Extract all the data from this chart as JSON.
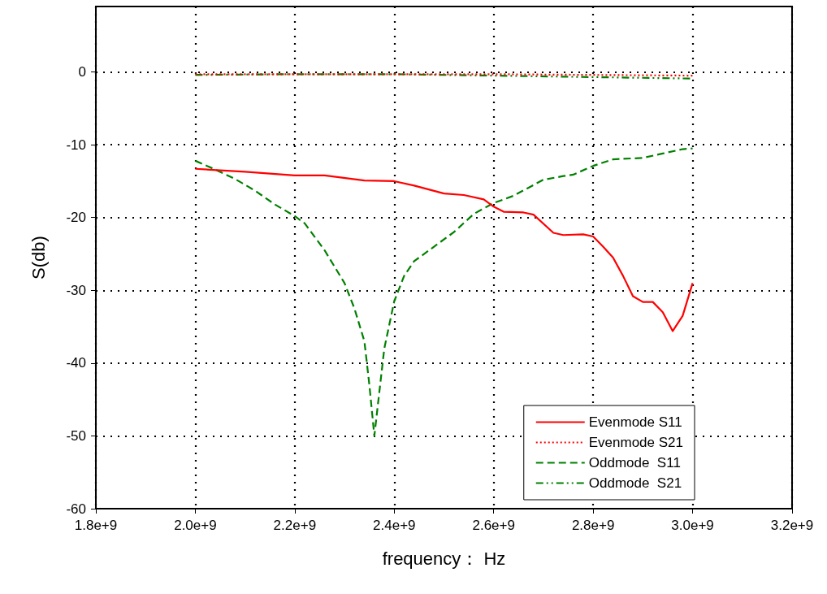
{
  "chart_data": {
    "type": "line",
    "xlabel": "frequency： Hz",
    "ylabel": "S(db)",
    "xlim": [
      1800000000,
      3200000000
    ],
    "xticks": [
      {
        "value": 1800000000,
        "label": "1.8e+9"
      },
      {
        "value": 2000000000,
        "label": "2.0e+9"
      },
      {
        "value": 2200000000,
        "label": "2.2e+9"
      },
      {
        "value": 2400000000,
        "label": "2.4e+9"
      },
      {
        "value": 2600000000,
        "label": "2.6e+9"
      },
      {
        "value": 2800000000,
        "label": "2.8e+9"
      },
      {
        "value": 3000000000,
        "label": "3.0e+9"
      },
      {
        "value": 3200000000,
        "label": "3.2e+9"
      }
    ],
    "ylim": [
      -60,
      9
    ],
    "yticks": [
      -60,
      -50,
      -40,
      -30,
      -20,
      -10,
      0
    ],
    "grid": true,
    "legend": "bottom right",
    "marker": "none",
    "series": [
      {
        "name": "Evenmode S11",
        "color": "#ff0000",
        "line_style": "solid",
        "x": [
          2000000000,
          2100000000,
          2200000000,
          2260000000,
          2340000000,
          2400000000,
          2440000000,
          2500000000,
          2540000000,
          2580000000,
          2600000000,
          2620000000,
          2660000000,
          2680000000,
          2720000000,
          2740000000,
          2780000000,
          2800000000,
          2820000000,
          2840000000,
          2860000000,
          2880000000,
          2900000000,
          2920000000,
          2940000000,
          2960000000,
          2980000000,
          3000000000
        ],
        "values": [
          -13.3,
          -13.7,
          -14.2,
          -14.2,
          -14.9,
          -15.0,
          -15.6,
          -16.7,
          -16.9,
          -17.5,
          -18.5,
          -19.2,
          -19.3,
          -19.6,
          -22.1,
          -22.4,
          -22.3,
          -22.6,
          -24.0,
          -25.5,
          -28.0,
          -30.8,
          -31.6,
          -31.6,
          -33.0,
          -35.6,
          -33.5,
          -29.0
        ]
      },
      {
        "name": "Evenmode S21",
        "color": "#ff0000",
        "line_style": "dotted",
        "x": [
          2000000000,
          2200000000,
          2400000000,
          2600000000,
          2800000000,
          3000000000
        ],
        "values": [
          -0.3,
          -0.3,
          -0.3,
          -0.3,
          -0.4,
          -0.5
        ]
      },
      {
        "name": "Oddmode  S11",
        "color": "#008000",
        "line_style": "dashed",
        "x": [
          2000000000,
          2040000000,
          2080000000,
          2120000000,
          2160000000,
          2200000000,
          2220000000,
          2260000000,
          2300000000,
          2320000000,
          2340000000,
          2350000000,
          2360000000,
          2370000000,
          2380000000,
          2400000000,
          2420000000,
          2440000000,
          2480000000,
          2520000000,
          2560000000,
          2600000000,
          2640000000,
          2700000000,
          2740000000,
          2760000000,
          2800000000,
          2840000000,
          2900000000,
          2940000000,
          2980000000,
          3000000000
        ],
        "values": [
          -12.2,
          -13.4,
          -14.7,
          -16.3,
          -18.2,
          -19.8,
          -20.8,
          -24.5,
          -29.0,
          -32.5,
          -37.0,
          -43.0,
          -50.0,
          -44.0,
          -38.0,
          -31.5,
          -28.0,
          -26.0,
          -24.0,
          -22.0,
          -19.5,
          -18.0,
          -17.0,
          -14.8,
          -14.3,
          -14.1,
          -12.9,
          -12.0,
          -11.8,
          -11.2,
          -10.6,
          -10.5
        ]
      },
      {
        "name": "Oddmode  S21",
        "color": "#008000",
        "line_style": "dashdot",
        "x": [
          2000000000,
          2200000000,
          2400000000,
          2600000000,
          2800000000,
          3000000000
        ],
        "values": [
          -0.4,
          -0.3,
          -0.3,
          -0.5,
          -0.7,
          -0.9
        ]
      }
    ]
  }
}
